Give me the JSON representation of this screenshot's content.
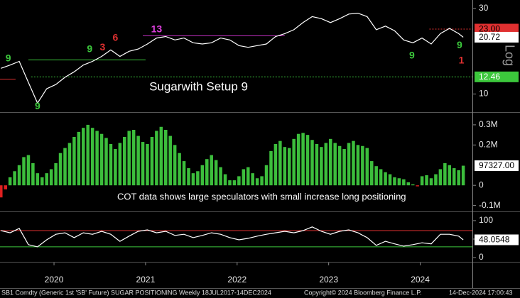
{
  "chart_data": [
    {
      "type": "line",
      "log_scale": true,
      "scale_label": "Log",
      "color": "#ffffff",
      "last_value_box": true,
      "xlim": [
        2019.91,
        2025.07
      ],
      "ylim": [
        8,
        32.8
      ],
      "yticks": [
        10,
        30
      ],
      "x": [
        2019.92,
        2020.02,
        2020.12,
        2020.22,
        2020.32,
        2020.42,
        2020.52,
        2020.62,
        2020.72,
        2020.82,
        2020.92,
        2021.02,
        2021.12,
        2021.22,
        2021.32,
        2021.42,
        2021.52,
        2021.62,
        2021.72,
        2021.82,
        2021.92,
        2022.02,
        2022.12,
        2022.22,
        2022.32,
        2022.42,
        2022.52,
        2022.62,
        2022.72,
        2022.82,
        2022.92,
        2023.02,
        2023.12,
        2023.22,
        2023.32,
        2023.42,
        2023.52,
        2023.62,
        2023.72,
        2023.82,
        2023.92,
        2024.02,
        2024.12,
        2024.22,
        2024.32,
        2024.42,
        2024.52,
        2024.62,
        2024.72,
        2024.82,
        2024.92,
        2024.97
      ],
      "values": [
        13.9,
        14.5,
        15.2,
        11.6,
        8.9,
        10.7,
        11.3,
        12.4,
        13.3,
        14.5,
        15.2,
        16.2,
        17.6,
        16.2,
        17.3,
        17.8,
        19.0,
        20.5,
        20.9,
        20.0,
        20.5,
        19.3,
        19.0,
        19.3,
        20.5,
        20.0,
        18.6,
        18.2,
        18.6,
        19.0,
        20.9,
        21.7,
        22.8,
        25.0,
        27.0,
        26.3,
        25.0,
        26.3,
        27.9,
        28.2,
        27.0,
        22.8,
        23.9,
        22.5,
        20.0,
        19.3,
        20.5,
        19.0,
        21.7,
        23.2,
        21.7,
        20.72
      ],
      "levels": [
        {
          "value": 23,
          "label": "23.00",
          "color": "#e03030",
          "label_text_color": "#000000",
          "dashed": true,
          "from": 2024.6,
          "to": 2025.07
        },
        {
          "value": 21.1,
          "color": "#c030c0",
          "from": 2021.47,
          "to": 2023.02
        },
        {
          "value": 15.5,
          "color": "#3cc83c",
          "from": 2020.22,
          "to": 2021.5
        },
        {
          "value": 12.1,
          "color": "#e03030",
          "from": 2019.91,
          "to": 2020.08
        },
        {
          "value": 12.46,
          "label": "12.46",
          "color": "#3cc83c",
          "label_text_color": "#ffffff",
          "dashed": true,
          "from": 2020.25,
          "to": 2025.07
        }
      ],
      "annotations": [
        {
          "text": "Sugarwith Setup 9",
          "x": 2021.54,
          "y": 10.9,
          "color": "#ffffff"
        }
      ],
      "setup_counts": [
        {
          "text": "9",
          "x": 2020.0,
          "y": 15.7,
          "color": "#3cc83c"
        },
        {
          "text": "9",
          "x": 2020.32,
          "y": 8.5,
          "color": "#3cc83c"
        },
        {
          "text": "9",
          "x": 2020.89,
          "y": 17.7,
          "color": "#3cc83c"
        },
        {
          "text": "3",
          "x": 2021.03,
          "y": 18.1,
          "color": "#e03030"
        },
        {
          "text": "6",
          "x": 2021.17,
          "y": 20.5,
          "color": "#e03030"
        },
        {
          "text": "13",
          "x": 2021.62,
          "y": 22.8,
          "color": "#e040e0"
        },
        {
          "text": "9",
          "x": 2024.41,
          "y": 16.3,
          "color": "#3cc83c"
        },
        {
          "text": "9",
          "x": 2024.93,
          "y": 18.6,
          "color": "#3cc83c"
        },
        {
          "text": "1",
          "x": 2024.95,
          "y": 15.3,
          "color": "#e03030"
        }
      ]
    },
    {
      "type": "bar",
      "color": "#3cbe3c",
      "negative_color": "#e02020",
      "last_value_label": "97327.00",
      "xlim": [
        2019.91,
        2025.07
      ],
      "ylim": [
        -126000,
        356000
      ],
      "yticks": [
        {
          "value": 300000,
          "label": "0.3M"
        },
        {
          "value": 200000,
          "label": "0.2M"
        },
        0,
        {
          "value": -100000,
          "label": "-0.1M"
        }
      ],
      "x": [
        2019.92,
        2019.97,
        2020.02,
        2020.07,
        2020.12,
        2020.17,
        2020.22,
        2020.27,
        2020.32,
        2020.37,
        2020.42,
        2020.47,
        2020.52,
        2020.57,
        2020.62,
        2020.67,
        2020.72,
        2020.77,
        2020.82,
        2020.87,
        2020.92,
        2020.97,
        2021.02,
        2021.07,
        2021.12,
        2021.17,
        2021.22,
        2021.27,
        2021.32,
        2021.37,
        2021.42,
        2021.47,
        2021.52,
        2021.57,
        2021.62,
        2021.67,
        2021.72,
        2021.77,
        2021.82,
        2021.87,
        2021.92,
        2021.97,
        2022.02,
        2022.07,
        2022.12,
        2022.17,
        2022.22,
        2022.27,
        2022.32,
        2022.37,
        2022.42,
        2022.47,
        2022.52,
        2022.57,
        2022.62,
        2022.67,
        2022.72,
        2022.77,
        2022.82,
        2022.87,
        2022.92,
        2022.97,
        2023.02,
        2023.07,
        2023.12,
        2023.17,
        2023.22,
        2023.27,
        2023.32,
        2023.37,
        2023.42,
        2023.47,
        2023.52,
        2023.57,
        2023.62,
        2023.67,
        2023.72,
        2023.77,
        2023.82,
        2023.87,
        2023.92,
        2023.97,
        2024.02,
        2024.07,
        2024.12,
        2024.17,
        2024.22,
        2024.27,
        2024.32,
        2024.37,
        2024.42,
        2024.47,
        2024.52,
        2024.57,
        2024.62,
        2024.67,
        2024.72,
        2024.77,
        2024.82,
        2024.87,
        2024.92,
        2024.97
      ],
      "values": [
        -60000,
        -20000,
        40000,
        70000,
        100000,
        140000,
        150000,
        110000,
        60000,
        40000,
        60000,
        80000,
        110000,
        160000,
        185000,
        210000,
        240000,
        265000,
        285000,
        300000,
        285000,
        270000,
        255000,
        235000,
        205000,
        180000,
        210000,
        240000,
        270000,
        275000,
        245000,
        215000,
        205000,
        240000,
        270000,
        290000,
        275000,
        245000,
        200000,
        160000,
        120000,
        85000,
        60000,
        70000,
        100000,
        130000,
        150000,
        125000,
        90000,
        55000,
        25000,
        25000,
        45000,
        80000,
        90000,
        60000,
        35000,
        45000,
        100000,
        170000,
        205000,
        220000,
        190000,
        185000,
        230000,
        255000,
        260000,
        250000,
        225000,
        205000,
        190000,
        210000,
        230000,
        210000,
        195000,
        180000,
        210000,
        220000,
        200000,
        195000,
        185000,
        120000,
        95000,
        80000,
        65000,
        55000,
        40000,
        35000,
        30000,
        15000,
        5000,
        -5000,
        45000,
        50000,
        35000,
        55000,
        80000,
        110000,
        100000,
        85000,
        75000,
        97327
      ],
      "annotations": [
        {
          "text": "COT data shows large speculators with small increase long positioning",
          "x": 2021.19,
          "y": -60000,
          "color": "#ffffff"
        }
      ]
    },
    {
      "type": "line",
      "color": "#ffffff",
      "last_value_box": true,
      "xlim": [
        2019.91,
        2025.07
      ],
      "ylim": [
        -9.6,
        121
      ],
      "yticks": [
        0,
        50,
        100
      ],
      "xticks": [
        {
          "value": 2020.5,
          "label": "2020"
        },
        {
          "value": 2021.5,
          "label": "2021"
        },
        {
          "value": 2022.5,
          "label": "2022"
        },
        {
          "value": 2023.5,
          "label": "2023"
        },
        {
          "value": 2024.5,
          "label": "2024"
        }
      ],
      "x": [
        2019.92,
        2020.02,
        2020.12,
        2020.22,
        2020.32,
        2020.42,
        2020.52,
        2020.62,
        2020.72,
        2020.82,
        2020.92,
        2021.02,
        2021.12,
        2021.22,
        2021.32,
        2021.42,
        2021.52,
        2021.62,
        2021.72,
        2021.82,
        2021.92,
        2022.02,
        2022.12,
        2022.22,
        2022.32,
        2022.42,
        2022.52,
        2022.62,
        2022.72,
        2022.82,
        2022.92,
        2023.02,
        2023.12,
        2023.22,
        2023.32,
        2023.42,
        2023.52,
        2023.62,
        2023.72,
        2023.82,
        2023.92,
        2024.02,
        2024.12,
        2024.22,
        2024.32,
        2024.42,
        2024.52,
        2024.62,
        2024.72,
        2024.82,
        2024.92,
        2024.97
      ],
      "values": [
        73,
        67,
        79,
        35,
        29,
        48,
        63,
        67,
        54,
        67,
        63,
        71,
        63,
        44,
        58,
        71,
        75,
        67,
        71,
        60,
        63,
        54,
        60,
        67,
        63,
        54,
        48,
        52,
        58,
        63,
        67,
        71,
        67,
        73,
        83,
        71,
        63,
        71,
        75,
        67,
        54,
        33,
        44,
        37,
        31,
        35,
        40,
        37,
        63,
        63,
        58,
        48.0548
      ],
      "levels": [
        {
          "value": 73,
          "color": "#e03030",
          "from": 2019.91,
          "to": 2025.07
        },
        {
          "value": 29,
          "color": "#3cc83c",
          "from": 2019.91,
          "to": 2025.07
        }
      ]
    }
  ],
  "footer": {
    "left": "SB1 Comdty (Generic 1st 'SB' Future) SUGAR POSITIONING  Weekly 18JUL2017-14DEC2024",
    "center": "Copyright© 2024 Bloomberg Finance L.P.",
    "right": "14-Dec-2024 17:00:43"
  }
}
